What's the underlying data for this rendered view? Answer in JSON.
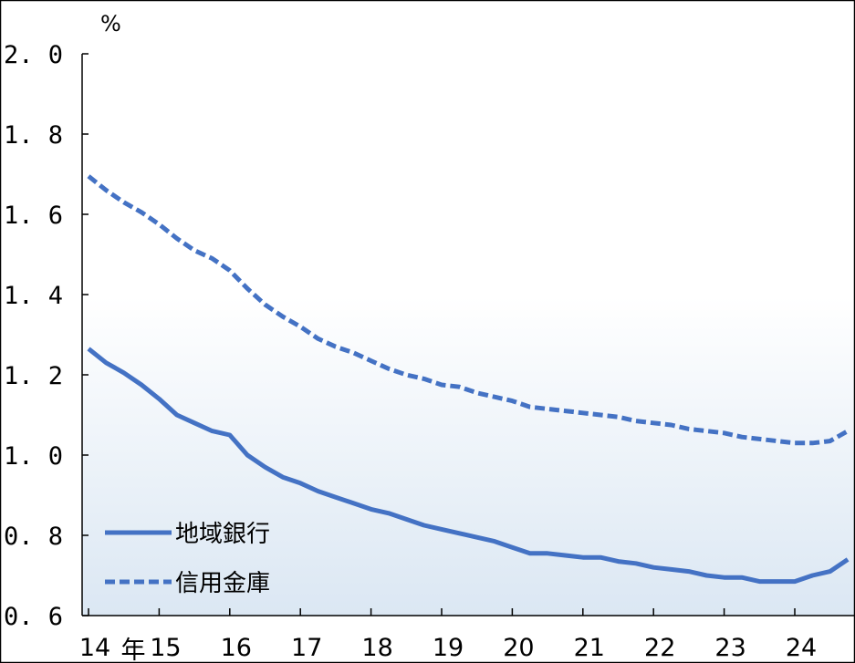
{
  "chart_data": {
    "type": "line",
    "ylabel": "%",
    "ylim": [
      0.6,
      2.0
    ],
    "yticks": [
      "2. 0",
      "1. 8",
      "1. 6",
      "1. 4",
      "1. 2",
      "1. 0",
      "0. 8",
      "0. 6"
    ],
    "ytick_values": [
      2.0,
      1.8,
      1.6,
      1.4,
      1.2,
      1.0,
      0.8,
      0.6
    ],
    "xlim": [
      2014,
      2024.75
    ],
    "xticks": [
      "14",
      "15",
      "16",
      "17",
      "18",
      "19",
      "20",
      "21",
      "22",
      "23",
      "24"
    ],
    "xtick_values": [
      2014,
      2015,
      2016,
      2017,
      2018,
      2019,
      2020,
      2021,
      2022,
      2023,
      2024
    ],
    "x_unit": "年",
    "grid": false,
    "legend_position": "bottom-left",
    "colors": {
      "series": "#4472C4",
      "fill_top": "#ffffff",
      "fill_bottom": "#dbe7f3"
    },
    "series": [
      {
        "name": "地域銀行",
        "style": "solid",
        "x": [
          2014.0,
          2014.25,
          2014.5,
          2014.75,
          2015.0,
          2015.25,
          2015.5,
          2015.75,
          2016.0,
          2016.25,
          2016.5,
          2016.75,
          2017.0,
          2017.25,
          2017.5,
          2017.75,
          2018.0,
          2018.25,
          2018.5,
          2018.75,
          2019.0,
          2019.25,
          2019.5,
          2019.75,
          2020.0,
          2020.25,
          2020.5,
          2020.75,
          2021.0,
          2021.25,
          2021.5,
          2021.75,
          2022.0,
          2022.25,
          2022.5,
          2022.75,
          2023.0,
          2023.25,
          2023.5,
          2023.75,
          2024.0,
          2024.25,
          2024.5,
          2024.75
        ],
        "values": [
          1.265,
          1.23,
          1.205,
          1.175,
          1.14,
          1.1,
          1.08,
          1.06,
          1.05,
          1.0,
          0.97,
          0.945,
          0.93,
          0.91,
          0.895,
          0.88,
          0.865,
          0.855,
          0.84,
          0.825,
          0.815,
          0.805,
          0.795,
          0.785,
          0.77,
          0.755,
          0.755,
          0.75,
          0.745,
          0.745,
          0.735,
          0.73,
          0.72,
          0.715,
          0.71,
          0.7,
          0.695,
          0.695,
          0.685,
          0.685,
          0.685,
          0.7,
          0.71,
          0.74
        ]
      },
      {
        "name": "信用金庫",
        "style": "dashed",
        "x": [
          2014.0,
          2014.25,
          2014.5,
          2014.75,
          2015.0,
          2015.25,
          2015.5,
          2015.75,
          2016.0,
          2016.25,
          2016.5,
          2016.75,
          2017.0,
          2017.25,
          2017.5,
          2017.75,
          2018.0,
          2018.25,
          2018.5,
          2018.75,
          2019.0,
          2019.25,
          2019.5,
          2019.75,
          2020.0,
          2020.25,
          2020.5,
          2020.75,
          2021.0,
          2021.25,
          2021.5,
          2021.75,
          2022.0,
          2022.25,
          2022.5,
          2022.75,
          2023.0,
          2023.25,
          2023.5,
          2023.75,
          2024.0,
          2024.25,
          2024.5,
          2024.75
        ],
        "values": [
          1.695,
          1.66,
          1.63,
          1.605,
          1.575,
          1.54,
          1.51,
          1.49,
          1.46,
          1.415,
          1.375,
          1.345,
          1.32,
          1.29,
          1.27,
          1.255,
          1.235,
          1.215,
          1.2,
          1.19,
          1.175,
          1.17,
          1.155,
          1.145,
          1.135,
          1.12,
          1.115,
          1.11,
          1.105,
          1.1,
          1.095,
          1.085,
          1.08,
          1.075,
          1.065,
          1.06,
          1.055,
          1.045,
          1.04,
          1.035,
          1.03,
          1.03,
          1.035,
          1.06
        ]
      }
    ]
  }
}
